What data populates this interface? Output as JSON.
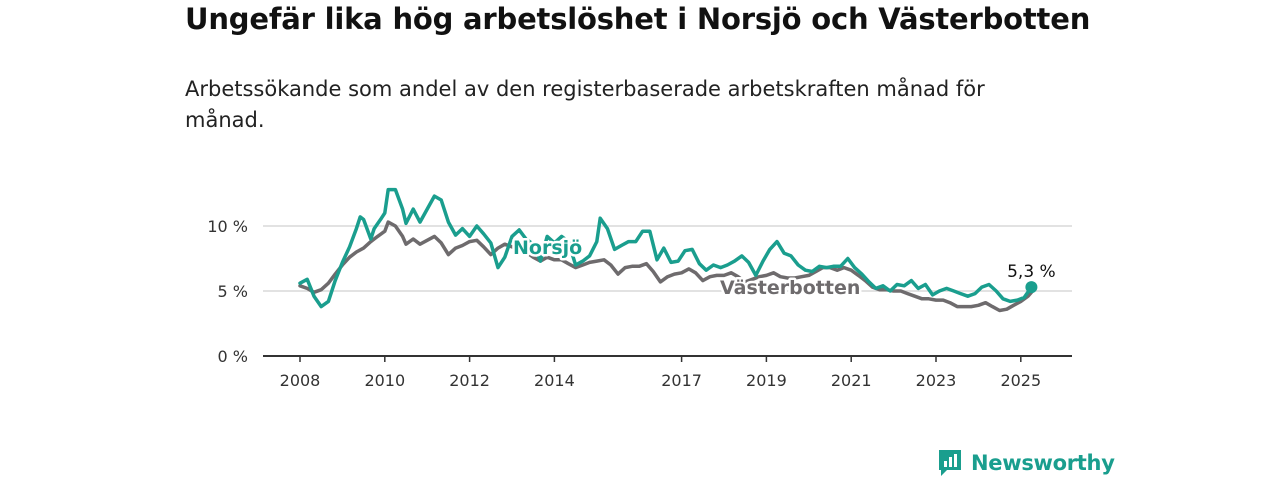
{
  "title": "Ungefär lika hög arbetslöshet i Norsjö och Västerbotten",
  "subtitle": "Arbetssökande som andel av den registerbaserade arbetskraften månad för månad.",
  "brand": {
    "name": "Newsworthy",
    "icon": "newsworthy-logo-icon",
    "color": "#1a9e8e"
  },
  "chart_data": {
    "type": "line",
    "x_unit": "year",
    "x_ticks": [
      "2008",
      "2010",
      "2012",
      "2014",
      "2017",
      "2019",
      "2021",
      "2023",
      "2025"
    ],
    "y_ticks": [
      "0 %",
      "5 %",
      "10 %"
    ],
    "ylim": [
      0,
      13
    ],
    "xlim": [
      2007.5,
      2026.1
    ],
    "grid": true,
    "end_label": "5,3 %",
    "series": [
      {
        "name": "Norsjö",
        "color": "#1a9e8e",
        "points": [
          [
            2008.0,
            5.6
          ],
          [
            2008.17,
            5.9
          ],
          [
            2008.33,
            4.6
          ],
          [
            2008.5,
            3.8
          ],
          [
            2008.67,
            4.2
          ],
          [
            2008.83,
            5.8
          ],
          [
            2009.0,
            7.2
          ],
          [
            2009.17,
            8.4
          ],
          [
            2009.33,
            9.8
          ],
          [
            2009.42,
            10.7
          ],
          [
            2009.5,
            10.5
          ],
          [
            2009.67,
            9.0
          ],
          [
            2009.75,
            9.8
          ],
          [
            2009.92,
            10.6
          ],
          [
            2010.0,
            11.0
          ],
          [
            2010.08,
            12.8
          ],
          [
            2010.25,
            12.8
          ],
          [
            2010.42,
            11.3
          ],
          [
            2010.5,
            10.2
          ],
          [
            2010.67,
            11.3
          ],
          [
            2010.83,
            10.3
          ],
          [
            2011.0,
            11.3
          ],
          [
            2011.17,
            12.3
          ],
          [
            2011.33,
            12.0
          ],
          [
            2011.5,
            10.3
          ],
          [
            2011.67,
            9.3
          ],
          [
            2011.83,
            9.8
          ],
          [
            2012.0,
            9.2
          ],
          [
            2012.17,
            10.0
          ],
          [
            2012.33,
            9.4
          ],
          [
            2012.5,
            8.7
          ],
          [
            2012.67,
            6.8
          ],
          [
            2012.83,
            7.6
          ],
          [
            2013.0,
            9.2
          ],
          [
            2013.17,
            9.7
          ],
          [
            2013.33,
            9.0
          ],
          [
            2013.5,
            8.6
          ],
          [
            2013.67,
            7.3
          ],
          [
            2013.83,
            9.2
          ],
          [
            2014.0,
            8.7
          ],
          [
            2014.17,
            9.2
          ],
          [
            2014.33,
            8.8
          ],
          [
            2014.5,
            7.0
          ],
          [
            2014.67,
            7.3
          ],
          [
            2014.83,
            7.7
          ],
          [
            2015.0,
            8.8
          ],
          [
            2015.08,
            10.6
          ],
          [
            2015.25,
            9.8
          ],
          [
            2015.42,
            8.2
          ],
          [
            2015.58,
            8.5
          ],
          [
            2015.75,
            8.8
          ],
          [
            2015.92,
            8.8
          ],
          [
            2016.08,
            9.6
          ],
          [
            2016.25,
            9.6
          ],
          [
            2016.42,
            7.4
          ],
          [
            2016.58,
            8.3
          ],
          [
            2016.75,
            7.2
          ],
          [
            2016.92,
            7.3
          ],
          [
            2017.08,
            8.1
          ],
          [
            2017.25,
            8.2
          ],
          [
            2017.42,
            7.1
          ],
          [
            2017.58,
            6.6
          ],
          [
            2017.75,
            7.0
          ],
          [
            2017.92,
            6.8
          ],
          [
            2018.08,
            7.0
          ],
          [
            2018.25,
            7.3
          ],
          [
            2018.42,
            7.7
          ],
          [
            2018.58,
            7.2
          ],
          [
            2018.75,
            6.2
          ],
          [
            2018.92,
            7.3
          ],
          [
            2019.08,
            8.2
          ],
          [
            2019.25,
            8.8
          ],
          [
            2019.42,
            7.9
          ],
          [
            2019.58,
            7.7
          ],
          [
            2019.75,
            7.0
          ],
          [
            2019.92,
            6.6
          ],
          [
            2020.08,
            6.5
          ],
          [
            2020.25,
            6.9
          ],
          [
            2020.42,
            6.8
          ],
          [
            2020.58,
            6.9
          ],
          [
            2020.75,
            6.9
          ],
          [
            2020.92,
            7.5
          ],
          [
            2021.08,
            6.8
          ],
          [
            2021.25,
            6.3
          ],
          [
            2021.42,
            5.7
          ],
          [
            2021.58,
            5.2
          ],
          [
            2021.75,
            5.4
          ],
          [
            2021.92,
            5.0
          ],
          [
            2022.08,
            5.5
          ],
          [
            2022.25,
            5.4
          ],
          [
            2022.42,
            5.8
          ],
          [
            2022.58,
            5.2
          ],
          [
            2022.75,
            5.5
          ],
          [
            2022.92,
            4.7
          ],
          [
            2023.08,
            5.0
          ],
          [
            2023.25,
            5.2
          ],
          [
            2023.42,
            5.0
          ],
          [
            2023.58,
            4.8
          ],
          [
            2023.75,
            4.6
          ],
          [
            2023.92,
            4.8
          ],
          [
            2024.08,
            5.3
          ],
          [
            2024.25,
            5.5
          ],
          [
            2024.42,
            5.0
          ],
          [
            2024.58,
            4.4
          ],
          [
            2024.75,
            4.2
          ],
          [
            2024.92,
            4.3
          ],
          [
            2025.08,
            4.5
          ],
          [
            2025.25,
            5.3
          ]
        ]
      },
      {
        "name": "Västerbotten",
        "color": "#6e6b6d",
        "points": [
          [
            2008.0,
            5.4
          ],
          [
            2008.17,
            5.2
          ],
          [
            2008.33,
            4.9
          ],
          [
            2008.5,
            5.1
          ],
          [
            2008.67,
            5.6
          ],
          [
            2008.83,
            6.3
          ],
          [
            2009.0,
            7.0
          ],
          [
            2009.17,
            7.6
          ],
          [
            2009.33,
            8.0
          ],
          [
            2009.5,
            8.3
          ],
          [
            2009.67,
            8.8
          ],
          [
            2009.83,
            9.2
          ],
          [
            2010.0,
            9.6
          ],
          [
            2010.08,
            10.3
          ],
          [
            2010.25,
            10.0
          ],
          [
            2010.42,
            9.2
          ],
          [
            2010.5,
            8.6
          ],
          [
            2010.67,
            9.0
          ],
          [
            2010.83,
            8.6
          ],
          [
            2011.0,
            8.9
          ],
          [
            2011.17,
            9.2
          ],
          [
            2011.33,
            8.7
          ],
          [
            2011.5,
            7.8
          ],
          [
            2011.67,
            8.3
          ],
          [
            2011.83,
            8.5
          ],
          [
            2012.0,
            8.8
          ],
          [
            2012.17,
            8.9
          ],
          [
            2012.33,
            8.4
          ],
          [
            2012.5,
            7.8
          ],
          [
            2012.67,
            8.3
          ],
          [
            2012.83,
            8.6
          ],
          [
            2013.0,
            8.4
          ],
          [
            2013.17,
            8.2
          ],
          [
            2013.33,
            8.0
          ],
          [
            2013.5,
            7.6
          ],
          [
            2013.67,
            7.3
          ],
          [
            2013.83,
            7.6
          ],
          [
            2014.0,
            7.4
          ],
          [
            2014.17,
            7.4
          ],
          [
            2014.33,
            7.1
          ],
          [
            2014.5,
            6.8
          ],
          [
            2014.67,
            7.0
          ],
          [
            2014.83,
            7.2
          ],
          [
            2015.0,
            7.3
          ],
          [
            2015.17,
            7.4
          ],
          [
            2015.33,
            7.0
          ],
          [
            2015.5,
            6.3
          ],
          [
            2015.67,
            6.8
          ],
          [
            2015.83,
            6.9
          ],
          [
            2016.0,
            6.9
          ],
          [
            2016.17,
            7.1
          ],
          [
            2016.33,
            6.5
          ],
          [
            2016.5,
            5.7
          ],
          [
            2016.67,
            6.1
          ],
          [
            2016.83,
            6.3
          ],
          [
            2017.0,
            6.4
          ],
          [
            2017.17,
            6.7
          ],
          [
            2017.33,
            6.4
          ],
          [
            2017.5,
            5.8
          ],
          [
            2017.67,
            6.1
          ],
          [
            2017.83,
            6.2
          ],
          [
            2018.0,
            6.2
          ],
          [
            2018.17,
            6.4
          ],
          [
            2018.33,
            6.1
          ],
          [
            2018.5,
            5.7
          ],
          [
            2018.67,
            5.9
          ],
          [
            2018.83,
            6.1
          ],
          [
            2019.0,
            6.2
          ],
          [
            2019.17,
            6.4
          ],
          [
            2019.33,
            6.1
          ],
          [
            2019.5,
            6.0
          ],
          [
            2019.67,
            6.0
          ],
          [
            2019.83,
            6.1
          ],
          [
            2020.0,
            6.2
          ],
          [
            2020.17,
            6.5
          ],
          [
            2020.33,
            6.8
          ],
          [
            2020.5,
            6.8
          ],
          [
            2020.67,
            6.6
          ],
          [
            2020.83,
            6.8
          ],
          [
            2021.0,
            6.6
          ],
          [
            2021.17,
            6.2
          ],
          [
            2021.33,
            5.8
          ],
          [
            2021.5,
            5.3
          ],
          [
            2021.67,
            5.1
          ],
          [
            2021.83,
            5.1
          ],
          [
            2022.0,
            5.0
          ],
          [
            2022.17,
            5.0
          ],
          [
            2022.33,
            4.8
          ],
          [
            2022.5,
            4.6
          ],
          [
            2022.67,
            4.4
          ],
          [
            2022.83,
            4.4
          ],
          [
            2023.0,
            4.3
          ],
          [
            2023.17,
            4.3
          ],
          [
            2023.33,
            4.1
          ],
          [
            2023.5,
            3.8
          ],
          [
            2023.67,
            3.8
          ],
          [
            2023.83,
            3.8
          ],
          [
            2024.0,
            3.9
          ],
          [
            2024.17,
            4.1
          ],
          [
            2024.33,
            3.8
          ],
          [
            2024.5,
            3.5
          ],
          [
            2024.67,
            3.6
          ],
          [
            2024.83,
            3.9
          ],
          [
            2025.0,
            4.2
          ],
          [
            2025.17,
            4.6
          ],
          [
            2025.25,
            4.9
          ]
        ]
      }
    ]
  }
}
